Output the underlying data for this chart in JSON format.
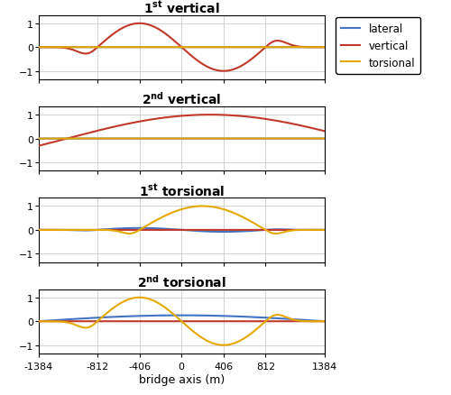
{
  "x_min": -1384,
  "x_max": 1384,
  "x_ticks": [
    -1384,
    -812,
    -406,
    0,
    406,
    812,
    1384
  ],
  "y_ticks": [
    -1,
    0,
    1
  ],
  "y_lim": [
    -1.35,
    1.35
  ],
  "xlabel": "bridge axis (m)",
  "colors": {
    "lateral": "#4472c4",
    "vertical": "#c0392b",
    "torsional": "#e5a800"
  },
  "line_width": 1.5,
  "titles": [
    {
      "text": "1",
      "superscript": "st",
      "suffix": "vertical"
    },
    {
      "text": "2",
      "superscript": "nd",
      "suffix": "vertical"
    },
    {
      "text": "1",
      "superscript": "st",
      "suffix": "torsional"
    },
    {
      "text": "2",
      "superscript": "nd",
      "suffix": "torsional"
    }
  ],
  "legend_labels": [
    "lateral",
    "vertical",
    "torsional"
  ],
  "background_color": "#ffffff",
  "grid_color": "#cccccc"
}
